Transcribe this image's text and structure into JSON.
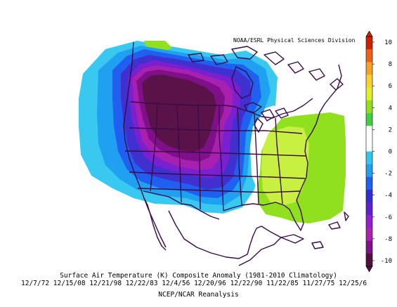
{
  "attribution": "NOAA/ESRL Physical Sciences Division",
  "title": "Surface Air Temperature (K) Composite Anomaly (1981-2010 Climatology)",
  "dates": [
    "12/7/72",
    "12/15/08",
    "12/21/98",
    "12/22/83",
    "12/4/56",
    "12/20/96",
    "12/22/90",
    "11/22/85",
    "11/27/75",
    "12/25/6"
  ],
  "credit": "NCEP/NCAR Reanalysis",
  "colorbar": {
    "labels": [
      "10",
      "8",
      "6",
      "4",
      "2",
      "0",
      "-2",
      "-4",
      "-6",
      "-8",
      "-10"
    ],
    "colors": [
      "#d02000",
      "#f06010",
      "#f8a020",
      "#f8d030",
      "#e0f020",
      "#90e020",
      "#40d040",
      "#ffffff",
      "#ffffff",
      "#30c8f0",
      "#20a0f0",
      "#2060f0",
      "#3030d0",
      "#6020d0",
      "#9020d0",
      "#b020b0",
      "#80108a",
      "#501040"
    ]
  },
  "colors": {
    "map_outline": "#3a0a4a",
    "anomaly_min": "#5a1348",
    "anomaly_max": "#88e020"
  }
}
